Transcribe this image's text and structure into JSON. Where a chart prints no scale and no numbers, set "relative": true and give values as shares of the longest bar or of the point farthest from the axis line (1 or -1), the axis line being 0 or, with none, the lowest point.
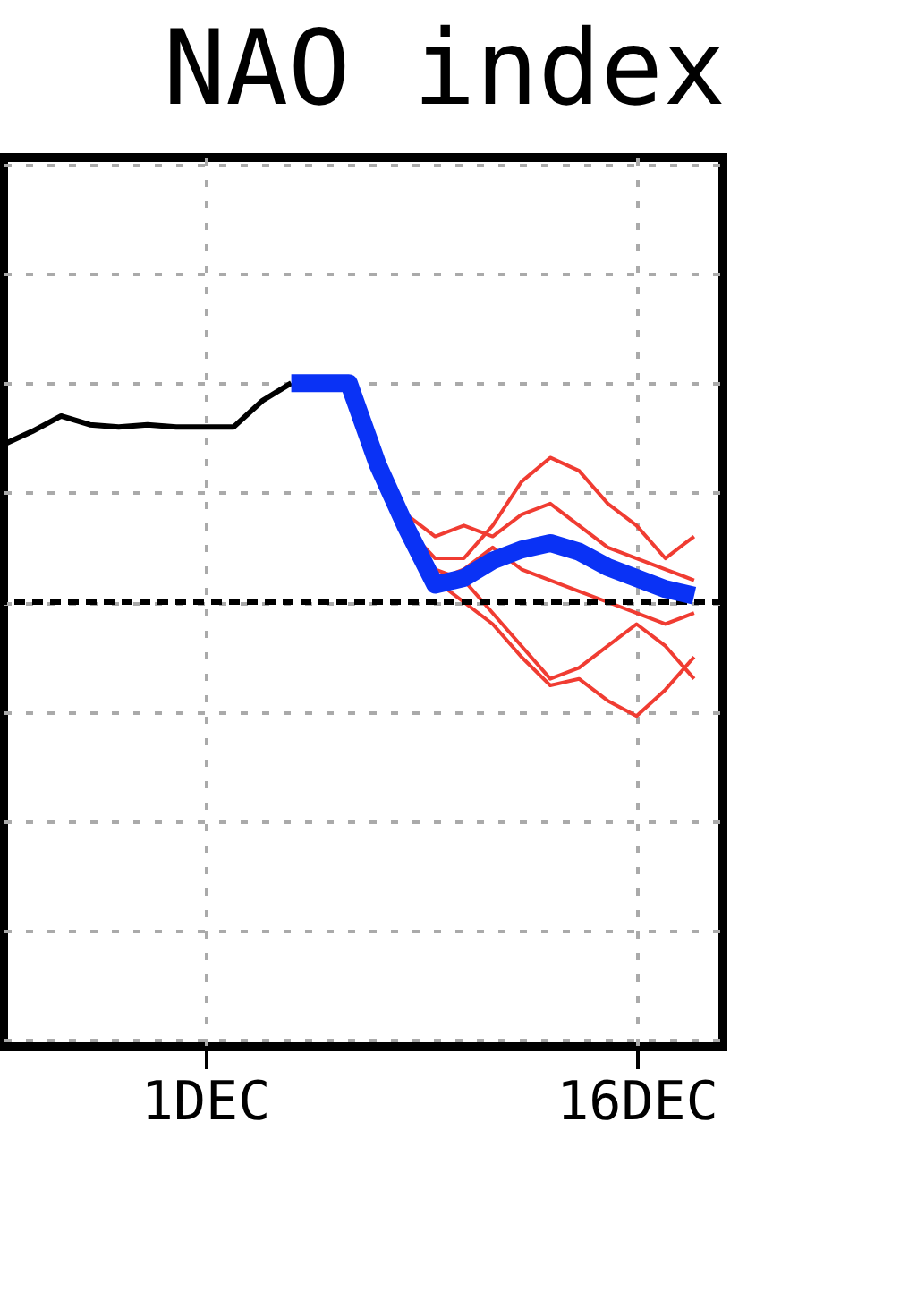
{
  "chart_data": {
    "type": "line",
    "title": "NAO index",
    "relative": true,
    "xlim": [
      "--11-24",
      "--12-19"
    ],
    "xticks": [
      {
        "value": "--12-01",
        "label": "1DEC"
      },
      {
        "value": "--12-16",
        "label": "16DEC"
      }
    ],
    "grid": true,
    "marker": "none",
    "ref_lines": [
      {
        "axis": "y",
        "value": 0,
        "color": "#000000",
        "line_style": "dashed"
      }
    ],
    "series": [
      {
        "color": "#f03c32",
        "x": [
          "--12-08",
          "--12-09",
          "--12-10",
          "--12-11",
          "--12-12",
          "--12-13",
          "--12-14",
          "--12-15",
          "--12-16",
          "--12-17",
          "--12-18"
        ],
        "values": [
          0.34,
          0.2,
          0.2,
          0.35,
          0.55,
          0.66,
          0.6,
          0.45,
          0.35,
          0.2,
          0.3
        ]
      },
      {
        "color": "#f03c32",
        "x": [
          "--12-08",
          "--12-09",
          "--12-10",
          "--12-11",
          "--12-12",
          "--12-13",
          "--12-14",
          "--12-15",
          "--12-16",
          "--12-17",
          "--12-18"
        ],
        "values": [
          0.34,
          0.1,
          0.0,
          -0.1,
          -0.25,
          -0.38,
          -0.35,
          -0.45,
          -0.52,
          -0.4,
          -0.25
        ]
      },
      {
        "color": "#f03c32",
        "x": [
          "--12-08",
          "--12-09",
          "--12-10",
          "--12-11",
          "--12-12",
          "--12-13",
          "--12-14",
          "--12-15",
          "--12-16",
          "--12-17",
          "--12-18"
        ],
        "values": [
          0.34,
          0.15,
          0.1,
          -0.05,
          -0.2,
          -0.35,
          -0.3,
          -0.2,
          -0.1,
          -0.2,
          -0.35
        ]
      },
      {
        "color": "#f03c32",
        "x": [
          "--12-08",
          "--12-09",
          "--12-10",
          "--12-11",
          "--12-12",
          "--12-13",
          "--12-14",
          "--12-15",
          "--12-16",
          "--12-17",
          "--12-18"
        ],
        "values": [
          0.4,
          0.3,
          0.35,
          0.3,
          0.4,
          0.45,
          0.35,
          0.25,
          0.2,
          0.15,
          0.1
        ]
      },
      {
        "color": "#f03c32",
        "x": [
          "--12-09",
          "--12-10",
          "--12-11",
          "--12-12",
          "--12-13",
          "--12-14",
          "--12-15",
          "--12-16",
          "--12-17",
          "--12-18"
        ],
        "values": [
          0.1,
          0.15,
          0.25,
          0.15,
          0.1,
          0.05,
          0.0,
          -0.05,
          -0.1,
          -0.05
        ]
      },
      {
        "color": "#000000",
        "x": [
          "--11-24",
          "--11-25",
          "--11-26",
          "--11-27",
          "--11-28",
          "--11-29",
          "--11-30",
          "--12-01",
          "--12-02",
          "--12-03",
          "--12-04"
        ],
        "values": [
          0.72,
          0.78,
          0.85,
          0.81,
          0.8,
          0.81,
          0.8,
          0.8,
          0.8,
          0.92,
          1.0
        ]
      },
      {
        "color": "#0a32f5",
        "x": [
          "--12-04",
          "--12-05",
          "--12-06",
          "--12-07",
          "--12-08",
          "--12-09",
          "--12-10",
          "--12-11",
          "--12-12",
          "--12-13",
          "--12-14",
          "--12-15",
          "--12-16",
          "--12-17",
          "--12-18"
        ],
        "values": [
          1.0,
          1.0,
          1.0,
          0.63,
          0.34,
          0.08,
          0.11,
          0.19,
          0.24,
          0.27,
          0.23,
          0.16,
          0.11,
          0.06,
          0.03
        ]
      }
    ]
  }
}
